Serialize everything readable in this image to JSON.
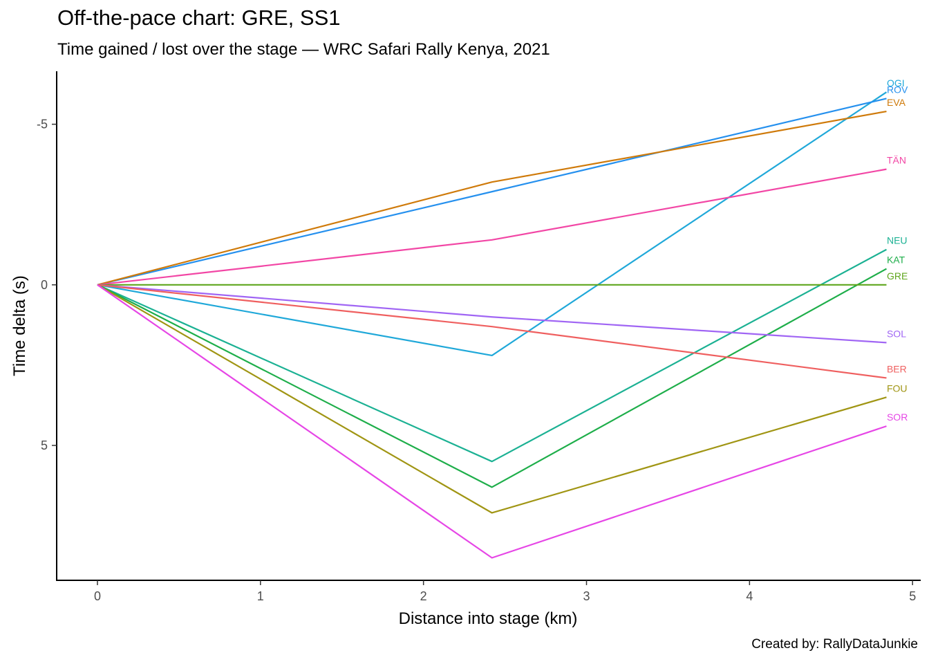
{
  "chart_data": {
    "type": "line",
    "title": "Off-the-pace chart: GRE, SS1",
    "subtitle": "Time gained / lost over the stage — WRC Safari Rally Kenya, 2021",
    "caption": "Created by: RallyDataJunkie",
    "xlabel": "Distance into stage (km)",
    "ylabel": "Time delta (s)",
    "xlim": [
      -0.25,
      5.05
    ],
    "ylim": [
      -6.65,
      9.2
    ],
    "y_reversed": true,
    "grid": false,
    "legend": "labels at line ends",
    "x_ticks": [
      0,
      1,
      2,
      3,
      4,
      5
    ],
    "x_tick_labels": [
      "0",
      "1",
      "2",
      "3",
      "4",
      "5"
    ],
    "y_ticks": [
      -5,
      0,
      5
    ],
    "y_tick_labels": [
      "-5",
      "0",
      "5"
    ],
    "x": [
      0,
      2.42,
      4.84
    ],
    "series": [
      {
        "name": "OGI",
        "color": "#1FA8D9",
        "values": [
          0,
          2.2,
          -6.0
        ]
      },
      {
        "name": "ROV",
        "color": "#2590EE",
        "values": [
          0,
          -2.9,
          -5.8
        ]
      },
      {
        "name": "EVA",
        "color": "#CF7A0A",
        "values": [
          0,
          -3.2,
          -5.4
        ]
      },
      {
        "name": "TÄN",
        "color": "#F246A5",
        "values": [
          0,
          -1.4,
          -3.6
        ]
      },
      {
        "name": "NEU",
        "color": "#1BB193",
        "values": [
          0,
          5.5,
          -1.1
        ]
      },
      {
        "name": "KAT",
        "color": "#1EAE4A",
        "values": [
          0,
          6.3,
          -0.5
        ]
      },
      {
        "name": "GRE",
        "color": "#5FA61D",
        "values": [
          0,
          0,
          0
        ]
      },
      {
        "name": "SOL",
        "color": "#A065F4",
        "values": [
          0,
          1.0,
          1.8
        ]
      },
      {
        "name": "BER",
        "color": "#EF5F5F",
        "values": [
          0,
          1.3,
          2.9
        ]
      },
      {
        "name": "FOU",
        "color": "#A09513",
        "values": [
          0,
          7.1,
          3.5
        ]
      },
      {
        "name": "SOR",
        "color": "#E646E6",
        "values": [
          0,
          8.5,
          4.4
        ]
      }
    ]
  }
}
